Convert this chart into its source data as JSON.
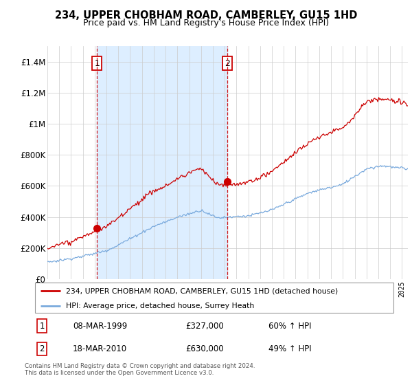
{
  "title": "234, UPPER CHOBHAM ROAD, CAMBERLEY, GU15 1HD",
  "subtitle": "Price paid vs. HM Land Registry's House Price Index (HPI)",
  "legend_house": "234, UPPER CHOBHAM ROAD, CAMBERLEY, GU15 1HD (detached house)",
  "legend_hpi": "HPI: Average price, detached house, Surrey Heath",
  "transaction1_date": "08-MAR-1999",
  "transaction1_price": "£327,000",
  "transaction1_hpi": "60% ↑ HPI",
  "transaction1_year": 1999.19,
  "transaction1_value": 327000,
  "transaction2_date": "18-MAR-2010",
  "transaction2_price": "£630,000",
  "transaction2_hpi": "49% ↑ HPI",
  "transaction2_year": 2010.21,
  "transaction2_value": 630000,
  "house_color": "#cc0000",
  "hpi_color": "#7aaadd",
  "vline_color": "#cc0000",
  "shade_color": "#ddeeff",
  "ylim": [
    0,
    1500000
  ],
  "yticks": [
    0,
    200000,
    400000,
    600000,
    800000,
    1000000,
    1200000,
    1400000
  ],
  "ytick_labels": [
    "£0",
    "£200K",
    "£400K",
    "£600K",
    "£800K",
    "£1M",
    "£1.2M",
    "£1.4M"
  ],
  "footer": "Contains HM Land Registry data © Crown copyright and database right 2024.\nThis data is licensed under the Open Government Licence v3.0.",
  "background_color": "#ffffff",
  "grid_color": "#cccccc",
  "xlim_start": 1995,
  "xlim_end": 2025.5
}
